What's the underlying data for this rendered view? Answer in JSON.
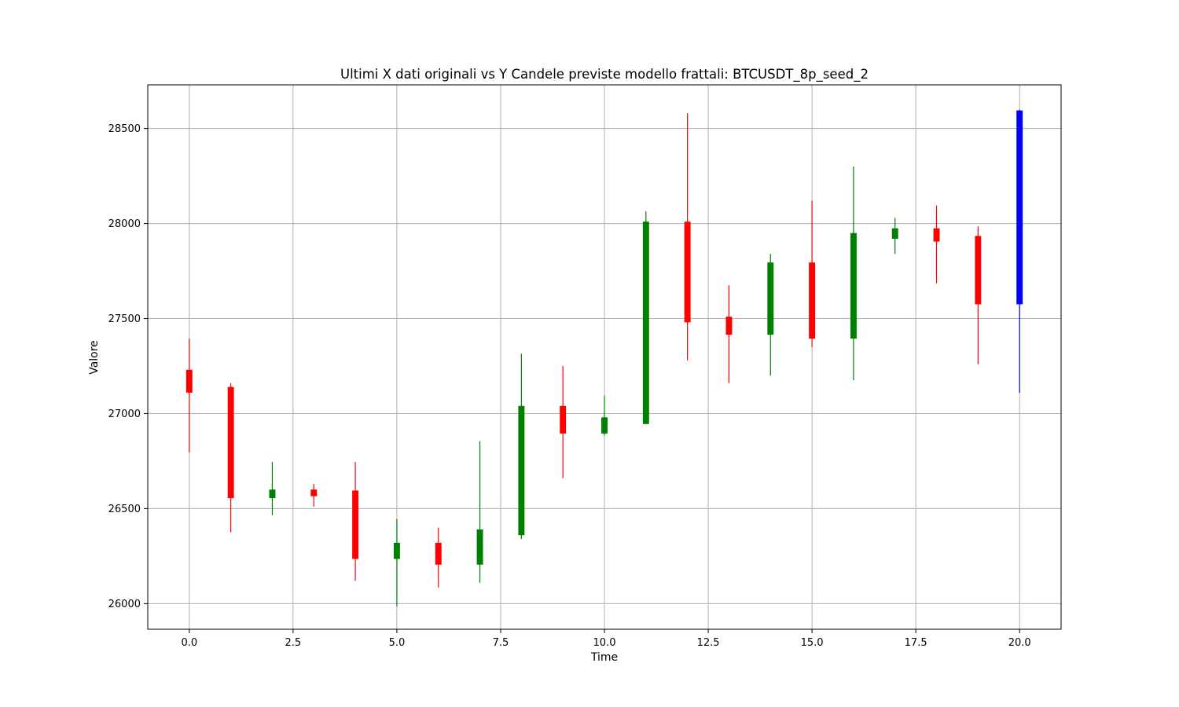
{
  "chart_data": {
    "type": "candlestick",
    "title": "Ultimi X dati originali vs Y Candele previste modello frattali: BTCUSDT_8p_seed_2",
    "xlabel": "Time",
    "ylabel": "Valore",
    "xlim": [
      -1.0,
      21.0
    ],
    "ylim": [
      25865,
      28730
    ],
    "xticks": [
      0.0,
      2.5,
      5.0,
      7.5,
      10.0,
      12.5,
      15.0,
      17.5,
      20.0
    ],
    "xtick_labels": [
      "0.0",
      "2.5",
      "5.0",
      "7.5",
      "10.0",
      "12.5",
      "15.0",
      "17.5",
      "20.0"
    ],
    "yticks": [
      26000,
      26500,
      27000,
      27500,
      28000,
      28500
    ],
    "ytick_labels": [
      "26000",
      "26500",
      "27000",
      "27500",
      "28000",
      "28500"
    ],
    "grid": true,
    "colors": {
      "up": "#008000",
      "down": "#ff0000",
      "predicted": "#0000ff"
    },
    "candles": [
      {
        "x": 0,
        "open": 27230,
        "high": 27395,
        "low": 26795,
        "close": 27110,
        "kind": "down"
      },
      {
        "x": 1,
        "open": 27140,
        "high": 27160,
        "low": 26375,
        "close": 26555,
        "kind": "down"
      },
      {
        "x": 2,
        "open": 26555,
        "high": 26745,
        "low": 26465,
        "close": 26600,
        "kind": "up"
      },
      {
        "x": 3,
        "open": 26600,
        "high": 26630,
        "low": 26510,
        "close": 26565,
        "kind": "down"
      },
      {
        "x": 4,
        "open": 26595,
        "high": 26745,
        "low": 26120,
        "close": 26235,
        "kind": "down"
      },
      {
        "x": 5,
        "open": 26235,
        "high": 26445,
        "low": 25985,
        "close": 26320,
        "kind": "up"
      },
      {
        "x": 6,
        "open": 26320,
        "high": 26400,
        "low": 26085,
        "close": 26205,
        "kind": "down"
      },
      {
        "x": 7,
        "open": 26205,
        "high": 26855,
        "low": 26110,
        "close": 26390,
        "kind": "up"
      },
      {
        "x": 8,
        "open": 26360,
        "high": 27315,
        "low": 26340,
        "close": 27040,
        "kind": "up"
      },
      {
        "x": 9,
        "open": 27040,
        "high": 27250,
        "low": 26660,
        "close": 26895,
        "kind": "down"
      },
      {
        "x": 10,
        "open": 26895,
        "high": 27095,
        "low": 26885,
        "close": 26980,
        "kind": "up"
      },
      {
        "x": 11,
        "open": 26945,
        "high": 28065,
        "low": 26945,
        "close": 28010,
        "kind": "up"
      },
      {
        "x": 12,
        "open": 28010,
        "high": 28580,
        "low": 27280,
        "close": 27480,
        "kind": "down"
      },
      {
        "x": 13,
        "open": 27510,
        "high": 27675,
        "low": 27160,
        "close": 27415,
        "kind": "down"
      },
      {
        "x": 14,
        "open": 27415,
        "high": 27840,
        "low": 27200,
        "close": 27795,
        "kind": "up"
      },
      {
        "x": 15,
        "open": 27795,
        "high": 28120,
        "low": 27350,
        "close": 27395,
        "kind": "down"
      },
      {
        "x": 16,
        "open": 27395,
        "high": 28300,
        "low": 27175,
        "close": 27950,
        "kind": "up"
      },
      {
        "x": 17,
        "open": 27920,
        "high": 28030,
        "low": 27840,
        "close": 27975,
        "kind": "up"
      },
      {
        "x": 18,
        "open": 27975,
        "high": 28095,
        "low": 27685,
        "close": 27905,
        "kind": "down"
      },
      {
        "x": 19,
        "open": 27935,
        "high": 27985,
        "low": 27260,
        "close": 27575,
        "kind": "down"
      },
      {
        "x": 20,
        "open": 27575,
        "high": 28600,
        "low": 27110,
        "close": 28595,
        "kind": "predicted"
      }
    ]
  }
}
